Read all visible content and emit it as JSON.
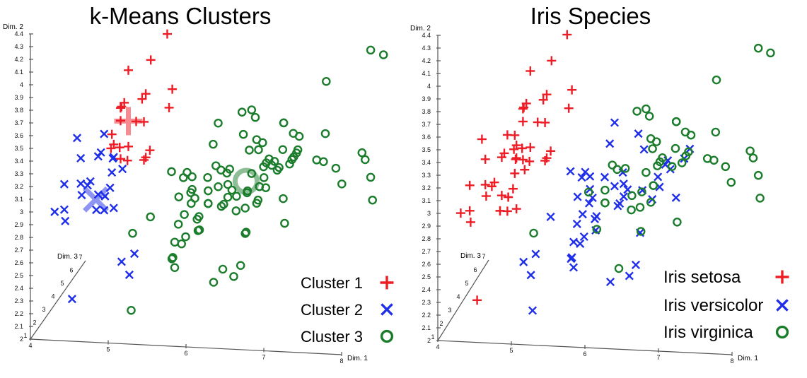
{
  "chart_data": [
    {
      "type": "scatter",
      "projection": "3d",
      "title": "k-Means Clusters",
      "xlabel": "Dim. 1",
      "ylabel": "Dim. 2",
      "zlabel": "Dim. 3",
      "xlim": [
        4,
        8
      ],
      "ylim": [
        2,
        4.4
      ],
      "zlim": [
        1,
        7
      ],
      "x_ticks": [
        "4",
        "5",
        "6",
        "7",
        "8"
      ],
      "y_ticks": [
        "2",
        "2.1",
        "2.2",
        "2.3",
        "2.4",
        "2.5",
        "2.6",
        "2.7",
        "2.8",
        "2.9",
        "3",
        "3.1",
        "3.2",
        "3.3",
        "3.4",
        "3.5",
        "3.6",
        "3.7",
        "3.8",
        "3.9",
        "4",
        "4.1",
        "4.2",
        "4.3",
        "4.4"
      ],
      "z_ticks": [
        "1",
        "2",
        "3",
        "4",
        "5",
        "6",
        "7"
      ],
      "color_by": "cluster",
      "legend": [
        {
          "name": "Cluster 1",
          "marker": "plus",
          "color": "#ee1c25"
        },
        {
          "name": "Cluster 2",
          "marker": "cross",
          "color": "#1f2ee8"
        },
        {
          "name": "Cluster 3",
          "marker": "circle",
          "color": "#1b7d2c"
        }
      ],
      "legend_position": "bottom-right",
      "centroids": [
        [
          5.2,
          3.7,
          1.5
        ],
        [
          4.77,
          3.06,
          1.6
        ],
        [
          6.3,
          2.9,
          5.0
        ]
      ]
    },
    {
      "type": "scatter",
      "projection": "3d",
      "title": "Iris Species",
      "xlabel": "Dim. 1",
      "ylabel": "Dim. 2",
      "zlabel": "Dim. 3",
      "xlim": [
        4,
        8
      ],
      "ylim": [
        2,
        4.4
      ],
      "zlim": [
        1,
        7
      ],
      "x_ticks": [
        "4",
        "5",
        "6",
        "7",
        "8"
      ],
      "y_ticks": [
        "2",
        "2.1",
        "2.2",
        "2.3",
        "2.4",
        "2.5",
        "2.6",
        "2.7",
        "2.8",
        "2.9",
        "3",
        "3.1",
        "3.2",
        "3.3",
        "3.4",
        "3.5",
        "3.6",
        "3.7",
        "3.8",
        "3.9",
        "4",
        "4.1",
        "4.2",
        "4.3",
        "4.4"
      ],
      "z_ticks": [
        "1",
        "2",
        "3",
        "4",
        "5",
        "6",
        "7"
      ],
      "color_by": "species",
      "legend": [
        {
          "name": "Iris setosa",
          "marker": "plus",
          "color": "#ee1c25"
        },
        {
          "name": "Iris versicolor",
          "marker": "cross",
          "color": "#1f2ee8"
        },
        {
          "name": "Iris virginica",
          "marker": "circle",
          "color": "#1b7d2c"
        }
      ],
      "legend_position": "bottom-right"
    }
  ],
  "points_columns": [
    "dim1",
    "dim2",
    "dim3",
    "species",
    "cluster"
  ],
  "points": [
    [
      5.1,
      3.5,
      1.4,
      0,
      1
    ],
    [
      4.9,
      3.0,
      1.4,
      0,
      2
    ],
    [
      4.7,
      3.2,
      1.3,
      0,
      2
    ],
    [
      4.6,
      3.1,
      1.5,
      0,
      2
    ],
    [
      5.0,
      3.6,
      1.4,
      0,
      1
    ],
    [
      5.4,
      3.9,
      1.7,
      0,
      1
    ],
    [
      4.6,
      3.4,
      1.4,
      0,
      2
    ],
    [
      5.0,
      3.4,
      1.5,
      0,
      2
    ],
    [
      4.4,
      2.9,
      1.4,
      0,
      2
    ],
    [
      4.9,
      3.1,
      1.5,
      0,
      2
    ],
    [
      5.4,
      3.7,
      1.5,
      0,
      1
    ],
    [
      4.8,
      3.4,
      1.6,
      0,
      2
    ],
    [
      4.8,
      3.0,
      1.4,
      0,
      2
    ],
    [
      4.3,
      3.0,
      1.1,
      0,
      2
    ],
    [
      5.8,
      4.0,
      1.2,
      0,
      1
    ],
    [
      5.7,
      4.4,
      1.5,
      0,
      1
    ],
    [
      5.4,
      3.9,
      1.3,
      0,
      1
    ],
    [
      5.1,
      3.5,
      1.4,
      0,
      1
    ],
    [
      5.7,
      3.8,
      1.7,
      0,
      1
    ],
    [
      5.1,
      3.8,
      1.5,
      0,
      1
    ],
    [
      5.4,
      3.4,
      1.7,
      0,
      1
    ],
    [
      5.1,
      3.7,
      1.5,
      0,
      1
    ],
    [
      4.6,
      3.6,
      1.0,
      0,
      2
    ],
    [
      5.1,
      3.3,
      1.7,
      0,
      2
    ],
    [
      4.8,
      3.4,
      1.9,
      0,
      2
    ],
    [
      5.0,
      3.0,
      1.6,
      0,
      2
    ],
    [
      5.0,
      3.4,
      1.6,
      0,
      2
    ],
    [
      5.2,
      3.5,
      1.5,
      0,
      1
    ],
    [
      5.2,
      3.4,
      1.4,
      0,
      1
    ],
    [
      4.7,
      3.2,
      1.6,
      0,
      2
    ],
    [
      4.8,
      3.1,
      1.6,
      0,
      2
    ],
    [
      5.4,
      3.4,
      1.5,
      0,
      1
    ],
    [
      5.2,
      4.1,
      1.5,
      0,
      1
    ],
    [
      5.5,
      4.2,
      1.4,
      0,
      1
    ],
    [
      4.9,
      3.1,
      1.5,
      0,
      2
    ],
    [
      5.0,
      3.2,
      1.2,
      0,
      2
    ],
    [
      5.5,
      3.5,
      1.3,
      0,
      1
    ],
    [
      4.9,
      3.6,
      1.4,
      0,
      2
    ],
    [
      4.4,
      3.0,
      1.3,
      0,
      2
    ],
    [
      5.1,
      3.4,
      1.5,
      0,
      1
    ],
    [
      5.0,
      3.5,
      1.3,
      0,
      1
    ],
    [
      4.5,
      2.3,
      1.3,
      0,
      2
    ],
    [
      4.4,
      3.2,
      1.3,
      0,
      2
    ],
    [
      5.0,
      3.5,
      1.6,
      0,
      1
    ],
    [
      5.1,
      3.8,
      1.9,
      0,
      1
    ],
    [
      4.8,
      3.0,
      1.4,
      0,
      2
    ],
    [
      5.1,
      3.8,
      1.6,
      0,
      1
    ],
    [
      4.6,
      3.2,
      1.4,
      0,
      2
    ],
    [
      5.3,
      3.7,
      1.5,
      0,
      1
    ],
    [
      5.0,
      3.3,
      1.4,
      0,
      2
    ],
    [
      7.0,
      3.2,
      4.7,
      1,
      3
    ],
    [
      6.4,
      3.2,
      4.5,
      1,
      3
    ],
    [
      6.9,
      3.1,
      4.9,
      1,
      3
    ],
    [
      5.5,
      2.3,
      4.0,
      1,
      3
    ],
    [
      6.5,
      2.8,
      4.6,
      1,
      3
    ],
    [
      5.7,
      2.8,
      4.5,
      1,
      3
    ],
    [
      6.3,
      3.3,
      4.7,
      1,
      3
    ],
    [
      4.9,
      2.4,
      3.3,
      1,
      2
    ],
    [
      6.6,
      2.9,
      4.6,
      1,
      3
    ],
    [
      5.2,
      2.7,
      3.9,
      1,
      3
    ],
    [
      5.0,
      2.0,
      3.5,
      1,
      3
    ],
    [
      5.9,
      3.0,
      4.2,
      1,
      3
    ],
    [
      6.0,
      2.2,
      4.0,
      1,
      3
    ],
    [
      6.1,
      2.9,
      4.7,
      1,
      3
    ],
    [
      5.6,
      2.9,
      3.6,
      1,
      3
    ],
    [
      6.7,
      3.1,
      4.4,
      1,
      3
    ],
    [
      5.6,
      3.0,
      4.5,
      1,
      3
    ],
    [
      5.8,
      2.7,
      4.1,
      1,
      3
    ],
    [
      6.2,
      2.2,
      4.5,
      1,
      3
    ],
    [
      5.6,
      2.5,
      3.9,
      1,
      3
    ],
    [
      5.9,
      3.2,
      4.8,
      1,
      3
    ],
    [
      6.1,
      2.8,
      4.0,
      1,
      3
    ],
    [
      6.3,
      2.5,
      4.9,
      1,
      3
    ],
    [
      6.1,
      2.8,
      4.7,
      1,
      3
    ],
    [
      6.4,
      2.9,
      4.3,
      1,
      3
    ],
    [
      6.6,
      3.0,
      4.4,
      1,
      3
    ],
    [
      6.8,
      2.8,
      4.8,
      1,
      3
    ],
    [
      6.7,
      3.0,
      5.0,
      1,
      3
    ],
    [
      6.0,
      2.9,
      4.5,
      1,
      3
    ],
    [
      5.7,
      2.6,
      3.5,
      1,
      3
    ],
    [
      5.5,
      2.4,
      3.8,
      1,
      3
    ],
    [
      5.5,
      2.4,
      3.7,
      1,
      3
    ],
    [
      5.8,
      2.7,
      3.9,
      1,
      3
    ],
    [
      6.0,
      2.7,
      5.1,
      1,
      3
    ],
    [
      5.4,
      3.0,
      4.5,
      1,
      3
    ],
    [
      6.0,
      3.4,
      4.5,
      1,
      3
    ],
    [
      6.7,
      3.1,
      4.7,
      1,
      3
    ],
    [
      6.3,
      2.3,
      4.4,
      1,
      3
    ],
    [
      5.6,
      3.0,
      4.1,
      1,
      3
    ],
    [
      5.5,
      2.5,
      4.0,
      1,
      3
    ],
    [
      5.5,
      2.6,
      4.4,
      1,
      3
    ],
    [
      6.1,
      3.0,
      4.6,
      1,
      3
    ],
    [
      5.8,
      2.6,
      4.0,
      1,
      3
    ],
    [
      5.0,
      2.3,
      3.3,
      1,
      2
    ],
    [
      5.6,
      2.7,
      4.2,
      1,
      3
    ],
    [
      5.7,
      3.0,
      4.2,
      1,
      3
    ],
    [
      5.7,
      2.9,
      4.2,
      1,
      3
    ],
    [
      6.2,
      2.9,
      4.3,
      1,
      3
    ],
    [
      5.1,
      2.5,
      3.0,
      1,
      2
    ],
    [
      5.7,
      2.8,
      4.1,
      1,
      3
    ],
    [
      6.3,
      3.3,
      6.0,
      2,
      3
    ],
    [
      5.8,
      2.7,
      5.1,
      2,
      3
    ],
    [
      7.1,
      3.0,
      5.9,
      2,
      3
    ],
    [
      6.3,
      2.9,
      5.6,
      2,
      3
    ],
    [
      6.5,
      3.0,
      5.8,
      2,
      3
    ],
    [
      7.6,
      3.0,
      6.6,
      2,
      3
    ],
    [
      4.9,
      2.5,
      4.5,
      2,
      3
    ],
    [
      7.3,
      2.9,
      6.3,
      2,
      3
    ],
    [
      6.7,
      2.5,
      5.8,
      2,
      3
    ],
    [
      7.2,
      3.6,
      6.1,
      2,
      3
    ],
    [
      6.5,
      3.2,
      5.1,
      2,
      3
    ],
    [
      6.4,
      2.7,
      5.3,
      2,
      3
    ],
    [
      6.8,
      3.0,
      5.5,
      2,
      3
    ],
    [
      5.7,
      2.5,
      5.0,
      2,
      3
    ],
    [
      5.8,
      2.8,
      5.1,
      2,
      3
    ],
    [
      6.4,
      3.2,
      5.3,
      2,
      3
    ],
    [
      6.5,
      3.0,
      5.5,
      2,
      3
    ],
    [
      7.7,
      3.8,
      6.7,
      2,
      3
    ],
    [
      7.7,
      2.6,
      6.9,
      2,
      3
    ],
    [
      6.0,
      2.2,
      5.0,
      2,
      3
    ],
    [
      6.9,
      3.2,
      5.7,
      2,
      3
    ],
    [
      5.6,
      2.8,
      4.9,
      2,
      3
    ],
    [
      7.7,
      2.8,
      6.7,
      2,
      3
    ],
    [
      6.3,
      2.7,
      4.9,
      2,
      3
    ],
    [
      6.7,
      3.3,
      5.7,
      2,
      3
    ],
    [
      7.2,
      3.2,
      6.0,
      2,
      3
    ],
    [
      6.2,
      2.8,
      4.8,
      2,
      3
    ],
    [
      6.1,
      3.0,
      4.9,
      2,
      3
    ],
    [
      6.4,
      2.8,
      5.6,
      2,
      3
    ],
    [
      7.2,
      3.0,
      5.8,
      2,
      3
    ],
    [
      7.4,
      2.8,
      6.1,
      2,
      3
    ],
    [
      7.9,
      3.8,
      6.4,
      2,
      3
    ],
    [
      6.4,
      2.8,
      5.6,
      2,
      3
    ],
    [
      6.3,
      2.8,
      5.1,
      2,
      3
    ],
    [
      6.1,
      2.6,
      5.6,
      2,
      3
    ],
    [
      7.7,
      3.0,
      6.1,
      2,
      3
    ],
    [
      6.3,
      3.4,
      5.6,
      2,
      3
    ],
    [
      6.4,
      3.1,
      5.5,
      2,
      3
    ],
    [
      6.0,
      3.0,
      4.8,
      2,
      3
    ],
    [
      6.9,
      3.1,
      5.4,
      2,
      3
    ],
    [
      6.7,
      3.1,
      5.6,
      2,
      3
    ],
    [
      6.9,
      3.1,
      5.1,
      2,
      3
    ],
    [
      5.8,
      2.7,
      5.1,
      2,
      3
    ],
    [
      6.8,
      3.2,
      5.9,
      2,
      3
    ],
    [
      6.7,
      3.3,
      5.7,
      2,
      3
    ],
    [
      6.7,
      3.0,
      5.2,
      2,
      3
    ],
    [
      6.3,
      2.5,
      5.0,
      2,
      3
    ],
    [
      6.5,
      3.0,
      5.2,
      2,
      3
    ],
    [
      6.2,
      3.4,
      5.4,
      2,
      3
    ],
    [
      5.9,
      3.0,
      5.1,
      2,
      3
    ]
  ]
}
